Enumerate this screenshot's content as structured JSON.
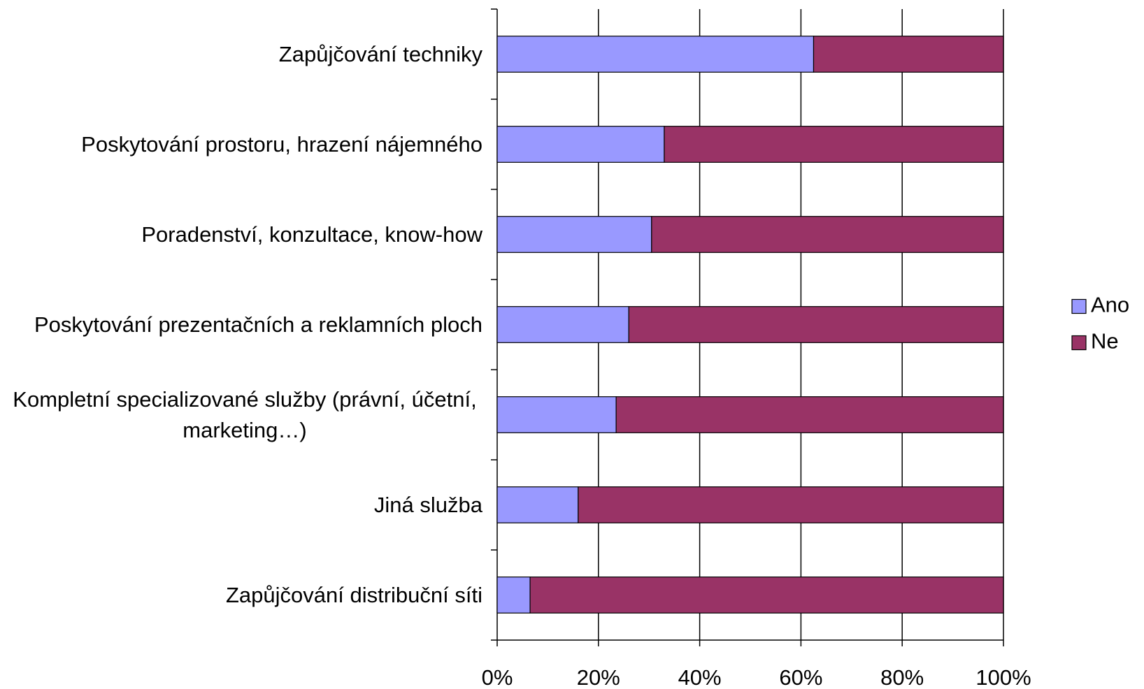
{
  "chart_data": {
    "type": "stacked-barh",
    "categories": [
      "Zapůjčování techniky",
      "Poskytování prostoru, hrazení nájemného",
      "Poradenství, konzultace, know-how",
      "Poskytování prezentačních a reklamních ploch",
      "Kompletní specializované služby (právní, účetní, marketing…)",
      "Jiná služba",
      "Zapůjčování distribuční síti"
    ],
    "series": [
      {
        "name": "Ano",
        "color": "#9999ff",
        "values": [
          62.5,
          33,
          30.5,
          26,
          23.5,
          16,
          6.5
        ]
      },
      {
        "name": "Ne",
        "color": "#993366",
        "values": [
          37.5,
          67,
          69.5,
          74,
          76.5,
          84,
          93.5
        ]
      }
    ],
    "xlim": [
      0,
      100
    ],
    "xticks": [
      {
        "value": 0,
        "label": "0%"
      },
      {
        "value": 20,
        "label": "20%"
      },
      {
        "value": 40,
        "label": "40%"
      },
      {
        "value": 60,
        "label": "60%"
      },
      {
        "value": 80,
        "label": "80%"
      },
      {
        "value": 100,
        "label": "100%"
      }
    ],
    "grid": true,
    "legend": "right"
  }
}
